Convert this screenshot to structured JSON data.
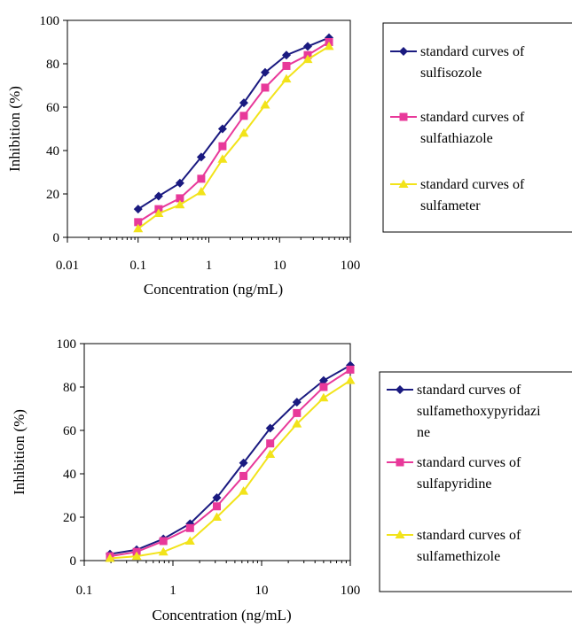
{
  "colors": {
    "series1": "#1a1a80",
    "series2": "#e8399a",
    "series3": "#f2e31a"
  },
  "chart_data": [
    {
      "type": "line",
      "xscale": "log",
      "xlabel": "Concentration (ng/mL)",
      "ylabel": "Inhibition (%)",
      "xlim": [
        0.01,
        100
      ],
      "ylim": [
        0,
        100
      ],
      "x_ticks": [
        0.01,
        0.1,
        1,
        10,
        100
      ],
      "x_tick_labels": [
        "0.01",
        "0.1",
        "1",
        "10",
        "100"
      ],
      "y_ticks": [
        0,
        20,
        40,
        60,
        80,
        100
      ],
      "y_tick_labels": [
        "0",
        "20",
        "40",
        "60",
        "80",
        "100"
      ],
      "grid": false,
      "legend_position": "right",
      "series": [
        {
          "name_lines": [
            "standard curves of",
            "sulfisozole"
          ],
          "marker": "diamond",
          "color": "#1a1a80",
          "x": [
            0.1,
            0.195,
            0.39,
            0.78,
            1.56,
            3.125,
            6.25,
            12.5,
            25,
            50
          ],
          "y": [
            13,
            19,
            25,
            37,
            50,
            62,
            76,
            84,
            88,
            92
          ]
        },
        {
          "name_lines": [
            "standard curves of",
            "sulfathiazole"
          ],
          "marker": "square",
          "color": "#e8399a",
          "x": [
            0.1,
            0.195,
            0.39,
            0.78,
            1.56,
            3.125,
            6.25,
            12.5,
            25,
            50
          ],
          "y": [
            7,
            13,
            18,
            27,
            42,
            56,
            69,
            79,
            84,
            90
          ]
        },
        {
          "name_lines": [
            "standard curves of",
            "sulfameter"
          ],
          "marker": "triangle",
          "color": "#f2e31a",
          "x": [
            0.1,
            0.195,
            0.39,
            0.78,
            1.56,
            3.125,
            6.25,
            12.5,
            25,
            50
          ],
          "y": [
            4,
            11,
            15,
            21,
            36,
            48,
            61,
            73,
            82,
            88
          ]
        }
      ]
    },
    {
      "type": "line",
      "xscale": "log",
      "xlabel": "Concentration (ng/mL)",
      "ylabel": "Inhibition (%)",
      "xlim": [
        0.1,
        100
      ],
      "ylim": [
        0,
        100
      ],
      "x_ticks": [
        0.1,
        1,
        10,
        100
      ],
      "x_tick_labels": [
        "0.1",
        "1",
        "10",
        "100"
      ],
      "y_ticks": [
        0,
        20,
        40,
        60,
        80,
        100
      ],
      "y_tick_labels": [
        "0",
        "20",
        "40",
        "60",
        "80",
        "100"
      ],
      "grid": false,
      "legend_position": "right",
      "series": [
        {
          "name_lines": [
            "standard curves of",
            "sulfamethoxypyridazi",
            "ne"
          ],
          "marker": "diamond",
          "color": "#1a1a80",
          "x": [
            0.195,
            0.39,
            0.78,
            1.56,
            3.125,
            6.25,
            12.5,
            25,
            50,
            100
          ],
          "y": [
            3,
            5,
            10,
            17,
            29,
            45,
            61,
            73,
            83,
            90
          ]
        },
        {
          "name_lines": [
            "standard curves of",
            "sulfapyridine"
          ],
          "marker": "square",
          "color": "#e8399a",
          "x": [
            0.195,
            0.39,
            0.78,
            1.56,
            3.125,
            6.25,
            12.5,
            25,
            50,
            100
          ],
          "y": [
            2,
            4,
            9,
            15,
            25,
            39,
            54,
            68,
            80,
            88
          ]
        },
        {
          "name_lines": [
            "standard curves of",
            "sulfamethizole"
          ],
          "marker": "triangle",
          "color": "#f2e31a",
          "x": [
            0.195,
            0.39,
            0.78,
            1.56,
            3.125,
            6.25,
            12.5,
            25,
            50,
            100
          ],
          "y": [
            1,
            2,
            4,
            9,
            20,
            32,
            49,
            63,
            75,
            83
          ]
        }
      ]
    }
  ]
}
